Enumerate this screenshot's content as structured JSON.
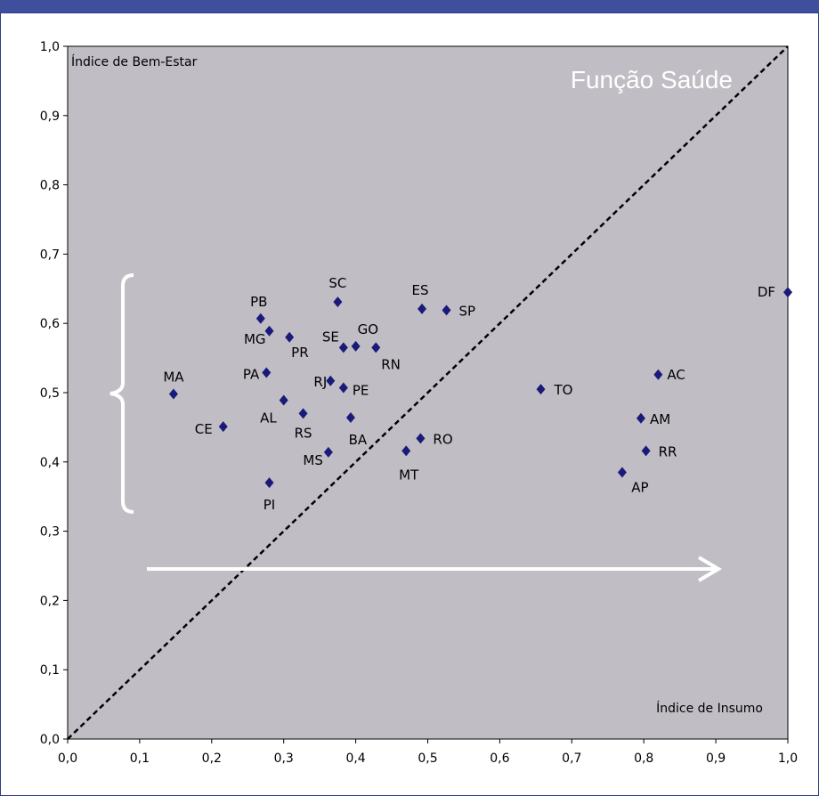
{
  "chart_data": {
    "type": "scatter",
    "title": "Função Saúde",
    "xlabel": "Índice de Insumo",
    "ylabel": "Índice de Bem-Estar",
    "xlim": [
      0,
      1
    ],
    "ylim": [
      0,
      1
    ],
    "x_ticks": [
      "0,0",
      "0,1",
      "0,2",
      "0,3",
      "0,4",
      "0,5",
      "0,6",
      "0,7",
      "0,8",
      "0,9",
      "1,0"
    ],
    "y_ticks": [
      "0,0",
      "0,1",
      "0,2",
      "0,3",
      "0,4",
      "0,5",
      "0,6",
      "0,7",
      "0,8",
      "0,9",
      "1,0"
    ],
    "grid": false,
    "reference_line": {
      "from": [
        0,
        0
      ],
      "to": [
        1,
        1
      ],
      "style": "dashed"
    },
    "points": [
      {
        "label": "DF",
        "x": 1.0,
        "y": 0.645
      },
      {
        "label": "SC",
        "x": 0.375,
        "y": 0.631
      },
      {
        "label": "ES",
        "x": 0.492,
        "y": 0.621
      },
      {
        "label": "SP",
        "x": 0.526,
        "y": 0.619
      },
      {
        "label": "PB",
        "x": 0.268,
        "y": 0.607
      },
      {
        "label": "MG",
        "x": 0.28,
        "y": 0.589
      },
      {
        "label": "PR",
        "x": 0.308,
        "y": 0.58
      },
      {
        "label": "SE",
        "x": 0.383,
        "y": 0.565
      },
      {
        "label": "GO",
        "x": 0.4,
        "y": 0.567
      },
      {
        "label": "RN",
        "x": 0.428,
        "y": 0.565
      },
      {
        "label": "PA",
        "x": 0.276,
        "y": 0.529
      },
      {
        "label": "AC",
        "x": 0.82,
        "y": 0.526
      },
      {
        "label": "RJ",
        "x": 0.365,
        "y": 0.517
      },
      {
        "label": "PE",
        "x": 0.383,
        "y": 0.507
      },
      {
        "label": "TO",
        "x": 0.657,
        "y": 0.505
      },
      {
        "label": "MA",
        "x": 0.147,
        "y": 0.498
      },
      {
        "label": "AL",
        "x": 0.3,
        "y": 0.489
      },
      {
        "label": "RS",
        "x": 0.327,
        "y": 0.47
      },
      {
        "label": "BA",
        "x": 0.393,
        "y": 0.464
      },
      {
        "label": "AM",
        "x": 0.796,
        "y": 0.463
      },
      {
        "label": "CE",
        "x": 0.216,
        "y": 0.451
      },
      {
        "label": "RO",
        "x": 0.49,
        "y": 0.434
      },
      {
        "label": "MT",
        "x": 0.47,
        "y": 0.416
      },
      {
        "label": "RR",
        "x": 0.803,
        "y": 0.416
      },
      {
        "label": "MS",
        "x": 0.362,
        "y": 0.414
      },
      {
        "label": "AP",
        "x": 0.77,
        "y": 0.385
      },
      {
        "label": "PI",
        "x": 0.28,
        "y": 0.37
      }
    ]
  },
  "colors": {
    "plot_background": "#c0bec4",
    "marker": "#1a1a7a",
    "frame_border": "#3f4f9e",
    "annotation": "#ffffff"
  }
}
